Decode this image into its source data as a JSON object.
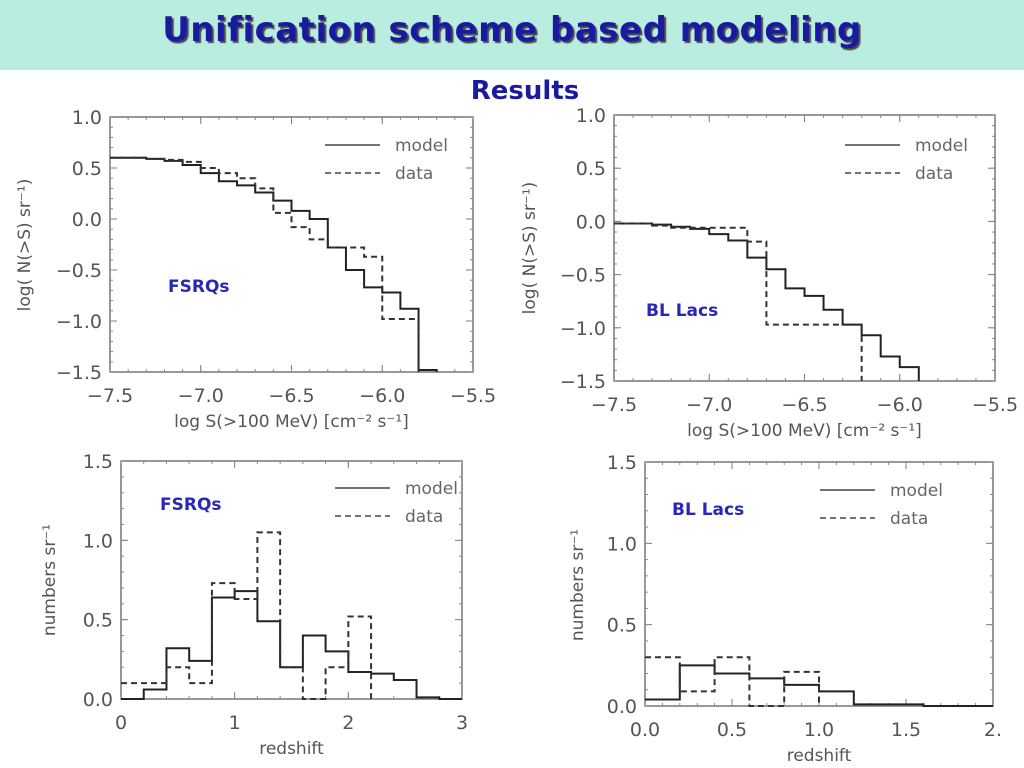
{
  "slide": {
    "title": "Unification scheme based modeling",
    "subtitle": "Results",
    "colors": {
      "banner": "#b8ede0",
      "title": "#1a1aa0",
      "annotation": "#2828b4"
    }
  },
  "chart_data": [
    {
      "id": "fsrq-logn-logs",
      "type": "line",
      "step": true,
      "annotation": "FSRQs",
      "xlabel": "log S(>100 MeV) [cm⁻² s⁻¹]",
      "ylabel": "log( N(>S) sr⁻¹)",
      "xlim": [
        -7.5,
        -5.5
      ],
      "ylim": [
        -1.5,
        1.0
      ],
      "xticks": [
        "−7.5",
        "−7.0",
        "−6.5",
        "−6.0",
        "−5.5"
      ],
      "xtick_values": [
        -7.5,
        -7.0,
        -6.5,
        -6.0,
        -5.5
      ],
      "yticks": [
        "1.0",
        "0.5",
        "0.0",
        "−0.5",
        "−1.0",
        "−1.5"
      ],
      "ytick_values": [
        1.0,
        0.5,
        0.0,
        -0.5,
        -1.0,
        -1.5
      ],
      "legend": {
        "position": "top-right",
        "entries": [
          "model",
          "data"
        ]
      },
      "series": [
        {
          "name": "model",
          "style": "solid",
          "edges": [
            -7.5,
            -7.4,
            -7.3,
            -7.2,
            -7.1,
            -7.0,
            -6.9,
            -6.8,
            -6.7,
            -6.6,
            -6.5,
            -6.4,
            -6.3,
            -6.2,
            -6.1,
            -6.0,
            -5.9,
            -5.8,
            -5.7
          ],
          "values": [
            0.6,
            0.6,
            0.59,
            0.57,
            0.53,
            0.45,
            0.37,
            0.33,
            0.26,
            0.18,
            0.08,
            0.0,
            -0.28,
            -0.5,
            -0.67,
            -0.72,
            -0.88,
            -1.48
          ]
        },
        {
          "name": "data",
          "style": "dashed",
          "edges": [
            -7.5,
            -7.4,
            -7.3,
            -7.2,
            -7.1,
            -7.0,
            -6.9,
            -6.8,
            -6.7,
            -6.6,
            -6.5,
            -6.4,
            -6.3,
            -6.2,
            -6.1,
            -6.0,
            -5.9,
            -5.8
          ],
          "values": [
            0.6,
            0.6,
            0.59,
            0.58,
            0.56,
            0.5,
            0.45,
            0.4,
            0.3,
            0.06,
            -0.08,
            -0.2,
            -0.28,
            -0.28,
            -0.37,
            -0.98,
            -0.98
          ]
        }
      ]
    },
    {
      "id": "bllac-logn-logs",
      "type": "line",
      "step": true,
      "annotation": "BL Lacs",
      "xlabel": "log S(>100 MeV) [cm⁻² s⁻¹]",
      "ylabel": "log( N(>S) sr⁻¹)",
      "xlim": [
        -7.5,
        -5.5
      ],
      "ylim": [
        -1.5,
        1.0
      ],
      "xticks": [
        "−7.5",
        "−7.0",
        "−6.5",
        "−6.0",
        "−5.5"
      ],
      "xtick_values": [
        -7.5,
        -7.0,
        -6.5,
        -6.0,
        -5.5
      ],
      "yticks": [
        "1.0",
        "0.5",
        "0.0",
        "−0.5",
        "−1.0",
        "−1.5"
      ],
      "ytick_values": [
        1.0,
        0.5,
        0.0,
        -0.5,
        -1.0,
        -1.5
      ],
      "legend": {
        "position": "top-right",
        "entries": [
          "model",
          "data"
        ]
      },
      "series": [
        {
          "name": "model",
          "style": "solid",
          "edges": [
            -7.5,
            -7.4,
            -7.3,
            -7.2,
            -7.1,
            -7.0,
            -6.9,
            -6.8,
            -6.7,
            -6.6,
            -6.5,
            -6.4,
            -6.3,
            -6.2,
            -6.1,
            -6.0,
            -5.9
          ],
          "values": [
            -0.02,
            -0.02,
            -0.03,
            -0.05,
            -0.07,
            -0.12,
            -0.18,
            -0.34,
            -0.45,
            -0.63,
            -0.7,
            -0.83,
            -0.97,
            -1.07,
            -1.27,
            -1.37
          ]
        },
        {
          "name": "data",
          "style": "dashed",
          "edges": [
            -7.5,
            -7.4,
            -7.3,
            -7.2,
            -7.1,
            -6.8,
            -6.7,
            -6.2
          ],
          "values": [
            -0.02,
            -0.02,
            -0.04,
            -0.06,
            -0.06,
            -0.19,
            -0.97
          ]
        }
      ]
    },
    {
      "id": "fsrq-redshift",
      "type": "line",
      "step": true,
      "annotation": "FSRQs",
      "xlabel": "redshift",
      "ylabel": "numbers sr⁻¹",
      "xlim": [
        0,
        3
      ],
      "ylim": [
        0,
        1.5
      ],
      "xticks": [
        "0",
        "1",
        "2",
        "3"
      ],
      "xtick_values": [
        0,
        1,
        2,
        3
      ],
      "yticks": [
        "1.5",
        "1.0",
        "0.5",
        "0.0"
      ],
      "ytick_values": [
        1.5,
        1.0,
        0.5,
        0.0
      ],
      "legend": {
        "position": "top-right",
        "entries": [
          "model",
          "data"
        ]
      },
      "series": [
        {
          "name": "model",
          "style": "solid",
          "edges": [
            0,
            0.2,
            0.4,
            0.6,
            0.8,
            1.0,
            1.2,
            1.4,
            1.6,
            1.8,
            2.0,
            2.2,
            2.4,
            2.6,
            2.8,
            3.0
          ],
          "values": [
            0.0,
            0.06,
            0.32,
            0.24,
            0.64,
            0.68,
            0.49,
            0.2,
            0.4,
            0.3,
            0.17,
            0.16,
            0.12,
            0.01,
            0.0
          ]
        },
        {
          "name": "data",
          "style": "dashed",
          "edges": [
            0,
            0.2,
            0.4,
            0.6,
            0.8,
            1.0,
            1.2,
            1.4,
            1.6,
            1.8,
            2.0,
            2.2
          ],
          "values": [
            0.1,
            0.1,
            0.2,
            0.1,
            0.73,
            0.63,
            1.05,
            0.2,
            0.0,
            0.2,
            0.52
          ]
        }
      ]
    },
    {
      "id": "bllac-redshift",
      "type": "line",
      "step": true,
      "annotation": "BL Lacs",
      "xlabel": "redshift",
      "ylabel": "numbers sr⁻¹",
      "xlim": [
        0,
        2
      ],
      "ylim": [
        0,
        1.5
      ],
      "xticks": [
        "0.0",
        "0.5",
        "1.0",
        "1.5",
        "2."
      ],
      "xtick_values": [
        0,
        0.5,
        1.0,
        1.5,
        2.0
      ],
      "yticks": [
        "1.5",
        "1.0",
        "0.5",
        "0.0"
      ],
      "ytick_values": [
        1.5,
        1.0,
        0.5,
        0.0
      ],
      "legend": {
        "position": "top-right",
        "entries": [
          "model",
          "data"
        ]
      },
      "series": [
        {
          "name": "model",
          "style": "solid",
          "edges": [
            0,
            0.2,
            0.4,
            0.6,
            0.8,
            1.0,
            1.2,
            1.4,
            1.6,
            1.8,
            2.0
          ],
          "values": [
            0.04,
            0.25,
            0.2,
            0.17,
            0.13,
            0.09,
            0.01,
            0.01,
            0.0,
            0.0
          ]
        },
        {
          "name": "data",
          "style": "dashed",
          "edges": [
            0,
            0.2,
            0.4,
            0.6,
            0.8,
            1.0
          ],
          "values": [
            0.3,
            0.09,
            0.3,
            0.0,
            0.21
          ]
        }
      ]
    }
  ]
}
